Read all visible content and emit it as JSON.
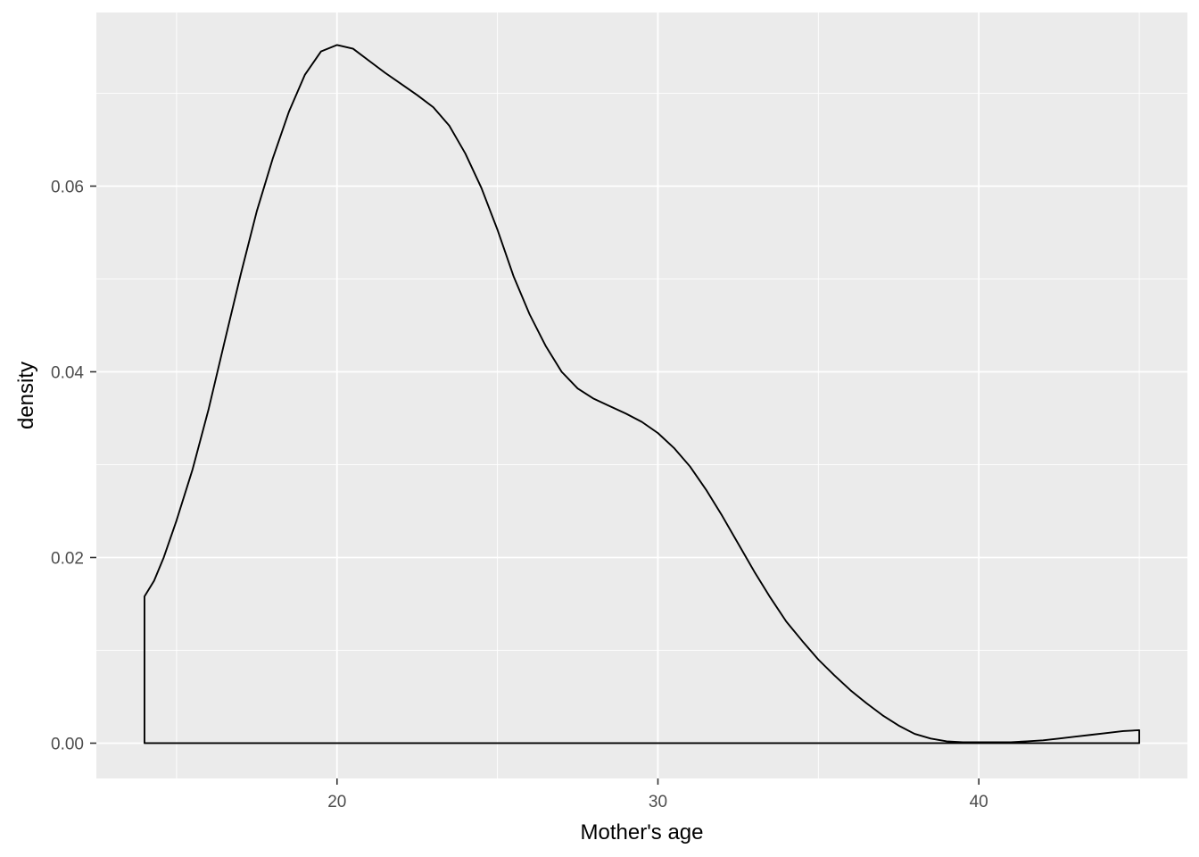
{
  "chart_data": {
    "type": "area",
    "title": "",
    "xlabel": "Mother's age",
    "ylabel": "density",
    "xlim": [
      12.5,
      46.5
    ],
    "ylim": [
      -0.0038,
      0.0787
    ],
    "x_ticks": [
      20,
      30,
      40
    ],
    "x_minor_ticks": [
      15,
      25,
      35,
      45
    ],
    "x_tick_labels": [
      "20",
      "30",
      "40"
    ],
    "y_ticks": [
      0.0,
      0.02,
      0.04,
      0.06
    ],
    "y_minor_ticks": [
      0.01,
      0.03,
      0.05,
      0.07
    ],
    "y_tick_labels": [
      "0.00",
      "0.02",
      "0.04",
      "0.06"
    ],
    "grid": true,
    "colors": {
      "panel": "#EBEBEB",
      "grid": "#FFFFFF",
      "line": "#000000",
      "tick_text": "#4D4D4D"
    },
    "series": [
      {
        "x": [
          14,
          14.3,
          14.6,
          15,
          15.5,
          16,
          16.5,
          17,
          17.5,
          18,
          18.5,
          19,
          19.5,
          20,
          20.5,
          21,
          21.5,
          22,
          22.5,
          23,
          23.5,
          24,
          24.5,
          25,
          25.5,
          26,
          26.5,
          27,
          27.5,
          28,
          28.5,
          29,
          29.5,
          30,
          30.5,
          31,
          31.5,
          32,
          32.5,
          33,
          33.5,
          34,
          34.5,
          35,
          35.5,
          36,
          36.5,
          37,
          37.5,
          38,
          38.5,
          39,
          39.5,
          40,
          40.5,
          41,
          41.5,
          42,
          42.5,
          43,
          43.5,
          44,
          44.5,
          45
        ],
        "y": [
          0.0158,
          0.0175,
          0.02,
          0.024,
          0.0295,
          0.036,
          0.0433,
          0.0505,
          0.0573,
          0.063,
          0.068,
          0.072,
          0.0745,
          0.0752,
          0.0748,
          0.0735,
          0.0722,
          0.071,
          0.0698,
          0.0685,
          0.0665,
          0.0635,
          0.0598,
          0.0553,
          0.0503,
          0.0462,
          0.0428,
          0.04,
          0.0382,
          0.0371,
          0.0363,
          0.0355,
          0.0346,
          0.0334,
          0.0318,
          0.0298,
          0.0273,
          0.0245,
          0.0215,
          0.0185,
          0.0157,
          0.0131,
          0.011,
          0.009,
          0.0073,
          0.0057,
          0.0043,
          0.003,
          0.0019,
          0.001,
          0.0005,
          0.0002,
          0.0001,
          0.0001,
          0.0001,
          0.0001,
          0.0002,
          0.0003,
          0.0005,
          0.0007,
          0.0009,
          0.0011,
          0.0013,
          0.0014
        ]
      }
    ]
  }
}
